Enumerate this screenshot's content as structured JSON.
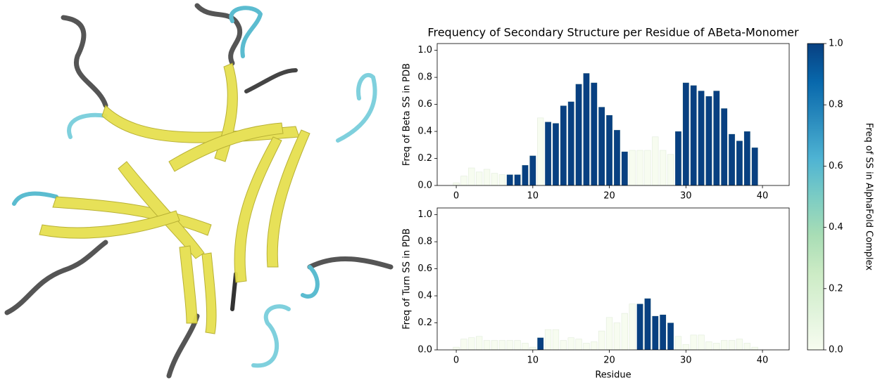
{
  "chart_data": [
    {
      "type": "bar",
      "title": "Frequency of Secondary Structure per Residue of ABeta-Monomer",
      "ylabel": "Freq of Beta SS in PDB",
      "x": [
        0,
        1,
        2,
        3,
        4,
        5,
        6,
        7,
        8,
        9,
        10,
        11,
        12,
        13,
        14,
        15,
        16,
        17,
        18,
        19,
        20,
        21,
        22,
        23,
        24,
        25,
        26,
        27,
        28,
        29,
        30,
        31,
        32,
        33,
        34,
        35,
        36,
        37,
        38,
        39,
        40,
        41
      ],
      "values": [
        0.02,
        0.07,
        0.13,
        0.1,
        0.12,
        0.09,
        0.08,
        0.08,
        0.08,
        0.15,
        0.22,
        0.5,
        0.47,
        0.46,
        0.59,
        0.62,
        0.75,
        0.83,
        0.76,
        0.58,
        0.52,
        0.41,
        0.25,
        0.26,
        0.26,
        0.26,
        0.36,
        0.26,
        0.23,
        0.4,
        0.76,
        0.74,
        0.7,
        0.66,
        0.7,
        0.57,
        0.38,
        0.33,
        0.4,
        0.28,
        0,
        0
      ],
      "colors": [
        "#f7fcf0",
        "#f7fcf0",
        "#f7fcf0",
        "#f7fcf0",
        "#f7fcf0",
        "#f7fcf0",
        "#f7fcf0",
        "#084081",
        "#084081",
        "#084081",
        "#084081",
        "#f7fcf0",
        "#084081",
        "#084081",
        "#084081",
        "#084081",
        "#084081",
        "#084081",
        "#084081",
        "#084081",
        "#084081",
        "#084081",
        "#084081",
        "#f7fcf0",
        "#f7fcf0",
        "#f7fcf0",
        "#f7fcf0",
        "#f7fcf0",
        "#f7fcf0",
        "#084081",
        "#084081",
        "#084081",
        "#084081",
        "#084081",
        "#084081",
        "#084081",
        "#084081",
        "#084081",
        "#084081",
        "#084081",
        "#f7fcf0",
        "#f7fcf0"
      ],
      "xlim": [
        -2.49,
        43.49
      ],
      "ylim": [
        0,
        1.05
      ],
      "xticks": [
        0,
        10,
        20,
        30,
        40
      ],
      "yticks": [
        {
          "value": 0,
          "label": "0.0"
        },
        {
          "value": 0.2,
          "label": "0.2"
        },
        {
          "value": 0.4,
          "label": "0.4"
        },
        {
          "value": 0.6,
          "label": "0.6"
        },
        {
          "value": 0.8,
          "label": "0.8"
        },
        {
          "value": 1,
          "label": "1.0"
        }
      ]
    },
    {
      "type": "bar",
      "ylabel": "Freq of Turn SS in PDB",
      "xlabel": "Residue",
      "x": [
        0,
        1,
        2,
        3,
        4,
        5,
        6,
        7,
        8,
        9,
        10,
        11,
        12,
        13,
        14,
        15,
        16,
        17,
        18,
        19,
        20,
        21,
        22,
        23,
        24,
        25,
        26,
        27,
        28,
        29,
        30,
        31,
        32,
        33,
        34,
        35,
        36,
        37,
        38,
        39,
        40,
        41
      ],
      "values": [
        0.02,
        0.08,
        0.09,
        0.1,
        0.07,
        0.07,
        0.07,
        0.07,
        0.07,
        0.05,
        0.02,
        0.09,
        0.15,
        0.15,
        0.07,
        0.09,
        0.08,
        0.05,
        0.06,
        0.14,
        0.24,
        0.2,
        0.27,
        0.34,
        0.34,
        0.38,
        0.25,
        0.26,
        0.2,
        0.1,
        0.04,
        0.11,
        0.11,
        0.06,
        0.05,
        0.07,
        0.07,
        0.08,
        0.05,
        0.02,
        0,
        0
      ],
      "colors": [
        "#f7fcf0",
        "#f7fcf0",
        "#f7fcf0",
        "#f7fcf0",
        "#f7fcf0",
        "#f7fcf0",
        "#f7fcf0",
        "#f7fcf0",
        "#f7fcf0",
        "#f7fcf0",
        "#f7fcf0",
        "#084081",
        "#f7fcf0",
        "#f7fcf0",
        "#f7fcf0",
        "#f7fcf0",
        "#f7fcf0",
        "#f7fcf0",
        "#f7fcf0",
        "#f7fcf0",
        "#f7fcf0",
        "#f7fcf0",
        "#f7fcf0",
        "#f7fcf0",
        "#084081",
        "#084081",
        "#084081",
        "#084081",
        "#084081",
        "#f7fcf0",
        "#f7fcf0",
        "#f7fcf0",
        "#f7fcf0",
        "#f7fcf0",
        "#f7fcf0",
        "#f7fcf0",
        "#f7fcf0",
        "#f7fcf0",
        "#f7fcf0",
        "#f7fcf0",
        "#f7fcf0",
        "#f7fcf0"
      ],
      "xlim": [
        -2.49,
        43.49
      ],
      "ylim": [
        0,
        1.05
      ],
      "xticks": [
        0,
        10,
        20,
        30,
        40
      ],
      "yticks": [
        {
          "value": 0,
          "label": "0.0"
        },
        {
          "value": 0.2,
          "label": "0.2"
        },
        {
          "value": 0.4,
          "label": "0.4"
        },
        {
          "value": 0.6,
          "label": "0.6"
        },
        {
          "value": 0.8,
          "label": "0.8"
        },
        {
          "value": 1,
          "label": "1.0"
        }
      ]
    }
  ],
  "colorbar": {
    "label": "Freq of SS in AlphaFold Complex",
    "lim": [
      0,
      1
    ],
    "ticks": [
      {
        "value": 0,
        "label": "0.0"
      },
      {
        "value": 0.2,
        "label": "0.2"
      },
      {
        "value": 0.4,
        "label": "0.4"
      },
      {
        "value": 0.6,
        "label": "0.6"
      },
      {
        "value": 0.8,
        "label": "0.8"
      },
      {
        "value": 1,
        "label": "1.0"
      }
    ],
    "colormap": [
      "#f7fcf0",
      "#e0f3db",
      "#ccebc5",
      "#a8ddb5",
      "#7bccc4",
      "#4eb3d3",
      "#2b8cbe",
      "#0868ac",
      "#084081"
    ]
  }
}
